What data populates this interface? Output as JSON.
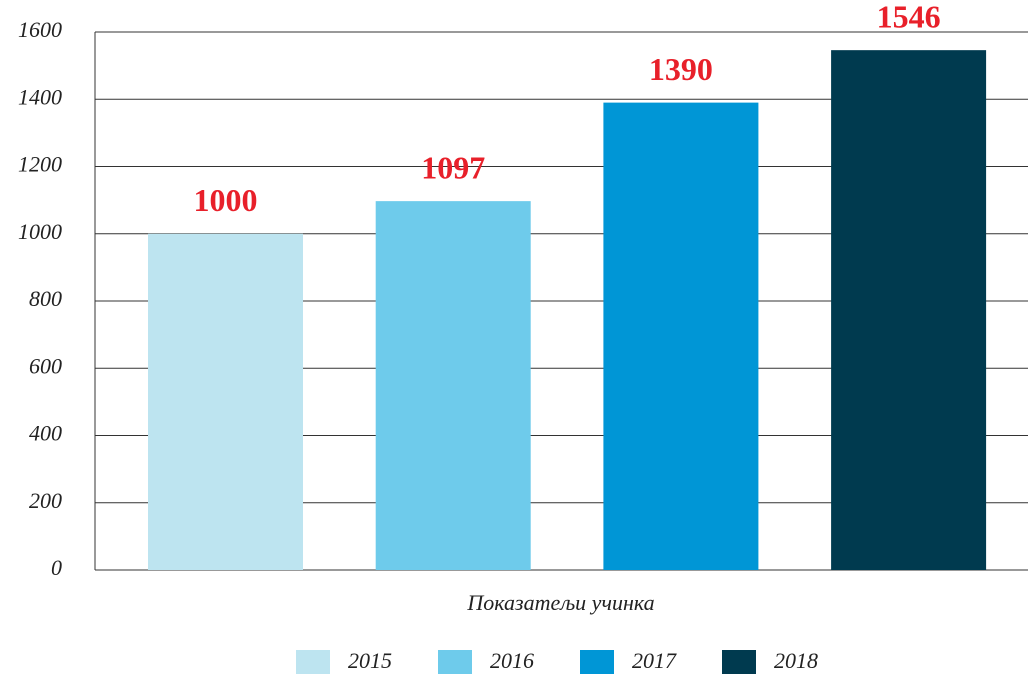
{
  "chart_data": {
    "type": "bar",
    "categories": [
      "Показатељи учинка"
    ],
    "series": [
      {
        "name": "2015",
        "color": "#bde4f0",
        "values": [
          1000
        ]
      },
      {
        "name": "2016",
        "color": "#6ecbeb",
        "values": [
          1097
        ]
      },
      {
        "name": "2017",
        "color": "#0096d6",
        "values": [
          1390
        ]
      },
      {
        "name": "2018",
        "color": "#003a4f",
        "values": [
          1546
        ]
      }
    ],
    "ylim": [
      0,
      1600
    ],
    "yticks": [
      0,
      200,
      400,
      600,
      800,
      1000,
      1200,
      1400,
      1600
    ],
    "grid": true,
    "legend": "bottom"
  }
}
